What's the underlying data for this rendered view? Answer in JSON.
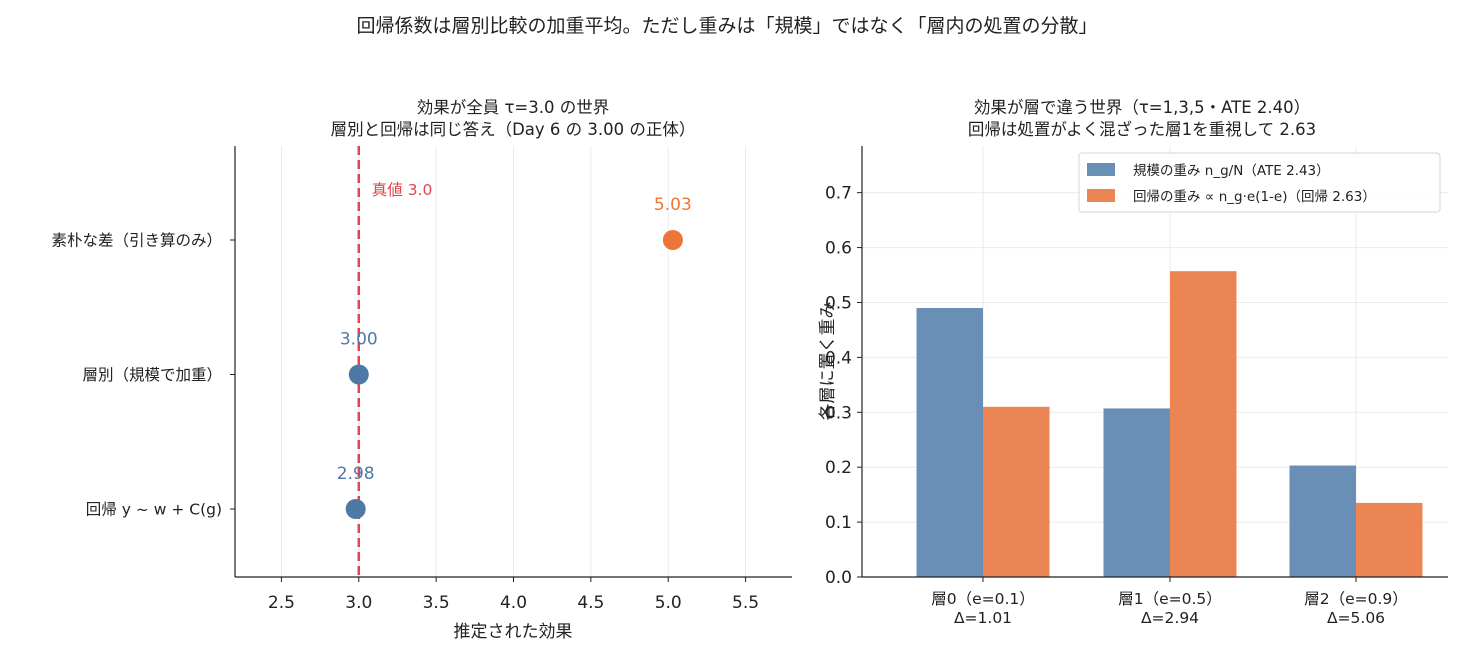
{
  "figure": {
    "suptitle": "回帰係数は層別比較の加重平均。ただし重みは「規模」ではなく「層内の処置の分散」"
  },
  "colors": {
    "blue": "#4e79a7",
    "orange": "#ed7537",
    "orange_bar": "#ec8554",
    "blue_bar": "#6a8fb7",
    "red_line": "#e0464b",
    "grid": "#ebebeb",
    "text": "#222222"
  },
  "chart_data": [
    {
      "type": "scatter",
      "title": "効果が全員 τ=3.0 の世界",
      "subtitle": "層別と回帰は同じ答え（Day 6 の 3.00 の正体）",
      "xlabel": "推定された効果",
      "ylabel": "",
      "xlim": [
        2.2,
        5.8
      ],
      "xticks": [
        2.5,
        3.0,
        3.5,
        4.0,
        4.5,
        5.0,
        5.5
      ],
      "xtick_labels": [
        "2.5",
        "3.0",
        "3.5",
        "4.0",
        "4.5",
        "5.0",
        "5.5"
      ],
      "grid": "x",
      "points": [
        {
          "label": "素朴な差（引き算のみ）",
          "value": 5.03,
          "value_label": "5.03",
          "color": "orange"
        },
        {
          "label": "層別（規模で加重）",
          "value": 3.0,
          "value_label": "3.00",
          "color": "blue"
        },
        {
          "label": "回帰 y ~ w + C(g)",
          "value": 2.98,
          "value_label": "2.98",
          "color": "blue"
        }
      ],
      "reference_line": {
        "value": 3.0,
        "label": "真値 3.0"
      }
    },
    {
      "type": "bar",
      "title": "効果が層で違う世界（τ=1,3,5・ATE 2.40）",
      "subtitle": "回帰は処置がよく混ざった層1を重視して 2.63",
      "xlabel": "",
      "ylabel": "各層に置く重み",
      "ylim": [
        0,
        0.785
      ],
      "yticks": [
        0.0,
        0.1,
        0.2,
        0.3,
        0.4,
        0.5,
        0.6,
        0.7
      ],
      "ytick_labels": [
        "0.0",
        "0.1",
        "0.2",
        "0.3",
        "0.4",
        "0.5",
        "0.6",
        "0.7"
      ],
      "grid": "y",
      "legend_position": "top-right",
      "categories": [
        {
          "line1": "層0（e=0.1）",
          "line2": "Δ=1.01"
        },
        {
          "line1": "層1（e=0.5）",
          "line2": "Δ=2.94"
        },
        {
          "line1": "層2（e=0.9）",
          "line2": "Δ=5.06"
        }
      ],
      "series": [
        {
          "name": "規模の重み n_g/N（ATE 2.43）",
          "values": [
            0.49,
            0.307,
            0.203
          ],
          "color": "blue_bar"
        },
        {
          "name": "回帰の重み ∝ n_g·e(1-e)（回帰 2.63）",
          "values": [
            0.31,
            0.557,
            0.135
          ],
          "color": "orange_bar"
        }
      ]
    }
  ]
}
